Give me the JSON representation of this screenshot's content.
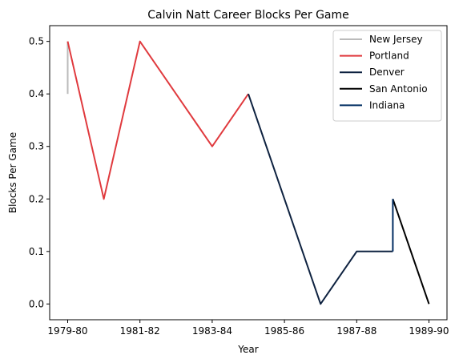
{
  "chart_data": {
    "type": "line",
    "title": "Calvin Natt Career Blocks Per Game",
    "xlabel": "Year",
    "ylabel": "Blocks Per Game",
    "x_ticks": [
      "1979-80",
      "1981-82",
      "1983-84",
      "1985-86",
      "1987-88",
      "1989-90"
    ],
    "y_ticks": [
      "0.0",
      "0.1",
      "0.2",
      "0.3",
      "0.4",
      "0.5"
    ],
    "ylim": [
      -0.03,
      0.53
    ],
    "grid": false,
    "legend_position": "upper right",
    "series": [
      {
        "name": "New Jersey",
        "color": "#bbbbbb",
        "x": [
          "1979-80",
          "1979-80"
        ],
        "values": [
          0.4,
          0.5
        ]
      },
      {
        "name": "Portland",
        "color": "#e03a3e",
        "x": [
          "1979-80",
          "1980-81",
          "1981-82",
          "1982-83",
          "1983-84",
          "1984-85"
        ],
        "values": [
          0.5,
          0.2,
          0.5,
          0.4,
          0.3,
          0.4
        ]
      },
      {
        "name": "Denver",
        "color": "#0e2240",
        "x": [
          "1984-85",
          "1985-86",
          "1986-87",
          "1987-88",
          "1988-89"
        ],
        "values": [
          0.4,
          0.2,
          0.0,
          0.1,
          0.1
        ]
      },
      {
        "name": "San Antonio",
        "color": "#000000",
        "x": [
          "1988-89",
          "1989-90"
        ],
        "values": [
          0.2,
          0.0
        ]
      },
      {
        "name": "Indiana",
        "color": "#002d62",
        "x": [
          "1988-89",
          "1988-89"
        ],
        "values": [
          0.1,
          0.2
        ]
      }
    ]
  }
}
